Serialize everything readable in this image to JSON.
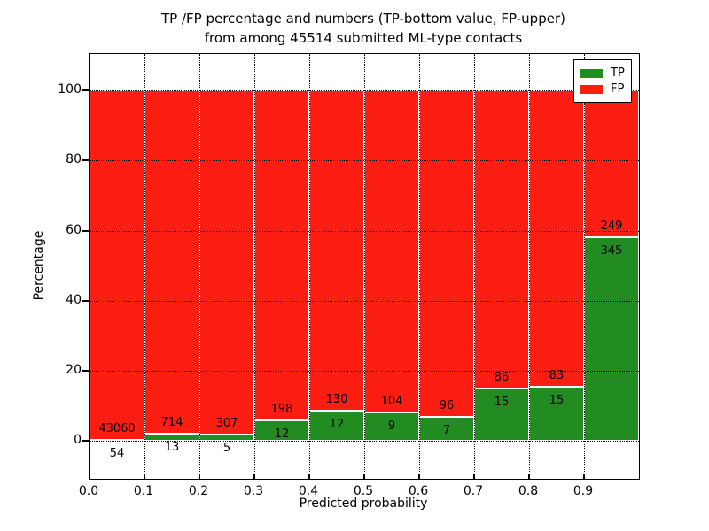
{
  "figure": {
    "title_line1": "TP /FP percentage and numbers (TP-bottom value, FP-upper)",
    "title_line2": "from among 45514 submitted ML-type contacts",
    "xlabel": "Predicted probability",
    "ylabel": "Percentage"
  },
  "legend": {
    "items": [
      {
        "label": "TP",
        "color": "#228b22"
      },
      {
        "label": "FP",
        "color": "#fc1d13"
      }
    ]
  },
  "chart_data": {
    "type": "bar",
    "stacked": true,
    "normalized_to_percent": true,
    "title": "TP /FP percentage and numbers (TP-bottom value, FP-upper) from among 45514 submitted ML-type contacts",
    "xlabel": "Predicted probability",
    "ylabel": "Percentage",
    "total_contacts": 45514,
    "bin_starts": [
      0.0,
      0.1,
      0.2,
      0.3,
      0.4,
      0.5,
      0.6,
      0.7,
      0.8,
      0.9
    ],
    "bin_width": 0.1,
    "series": [
      {
        "name": "TP",
        "color": "#228b22",
        "counts": [
          54,
          13,
          5,
          12,
          12,
          9,
          7,
          15,
          15,
          345
        ]
      },
      {
        "name": "FP",
        "color": "#fc1d13",
        "counts": [
          43060,
          714,
          307,
          198,
          130,
          104,
          96,
          86,
          83,
          249
        ]
      }
    ],
    "tp_percent": [
      0.13,
      1.79,
      1.6,
      5.71,
      8.45,
      7.96,
      6.8,
      14.85,
      15.31,
      58.08
    ],
    "x_tick_labels": [
      "0.0",
      "0.1",
      "0.2",
      "0.3",
      "0.4",
      "0.5",
      "0.6",
      "0.7",
      "0.8",
      "0.9"
    ],
    "y_tick_values": [
      0,
      20,
      40,
      60,
      80,
      100
    ],
    "xlim": [
      0.0,
      1.0
    ],
    "ylim": [
      -11,
      110.5
    ],
    "grid": true,
    "grid_style": "dotted",
    "legend_position": "upper right",
    "annotation_rule": "FP count printed above TP/FP boundary, TP count printed below boundary"
  }
}
